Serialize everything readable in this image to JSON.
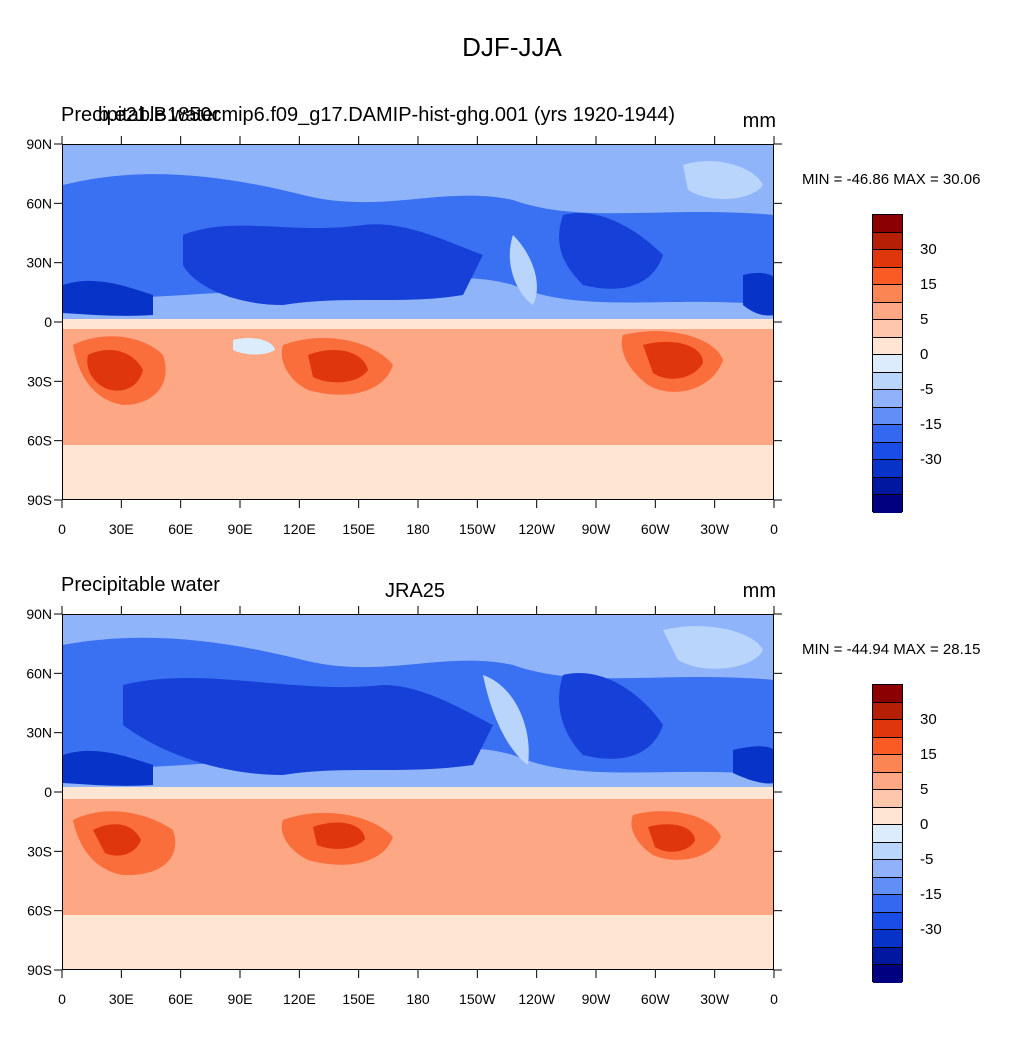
{
  "title": "DJF-JJA",
  "panels": [
    {
      "left_label": "Precipitable water",
      "center_label": "b.e21.B1850cmip6.f09_g17.DAMIP-hist-ghg.001 (yrs 1920-1944)",
      "unit": "mm",
      "minmax": "MIN = -46.86 MAX =  30.06"
    },
    {
      "left_label": "Precipitable water",
      "center_label": "JRA25",
      "unit": "mm",
      "minmax": "MIN = -44.94 MAX =  28.15"
    }
  ],
  "lat_ticks": [
    "90N",
    "60N",
    "30N",
    "0",
    "30S",
    "60S",
    "90S"
  ],
  "lon_ticks": [
    "0",
    "30E",
    "60E",
    "90E",
    "120E",
    "150E",
    "180",
    "150W",
    "120W",
    "90W",
    "60W",
    "30W",
    "0"
  ],
  "colorbar": {
    "colors": [
      "#8b0000",
      "#b41f05",
      "#e0360c",
      "#fa5a24",
      "#fc8653",
      "#fda785",
      "#fec6ab",
      "#fee6d3",
      "#dcecfb",
      "#b9d5fb",
      "#8fb2fa",
      "#5f8ff7",
      "#3468f0",
      "#1a4de6",
      "#0833c8",
      "#0018a0",
      "#000080"
    ],
    "labels": [
      "30",
      "15",
      "5",
      "0",
      "-5",
      "-15",
      "-30"
    ]
  },
  "palette": {
    "ocean_dark": "#1640d8",
    "ocean_mid": "#3a70f2",
    "ocean_light": "#8fb4fa",
    "red_dark": "#e0360c",
    "red_mid": "#fa6e3c",
    "peach": "#fda785",
    "cream": "#fee6d3"
  }
}
